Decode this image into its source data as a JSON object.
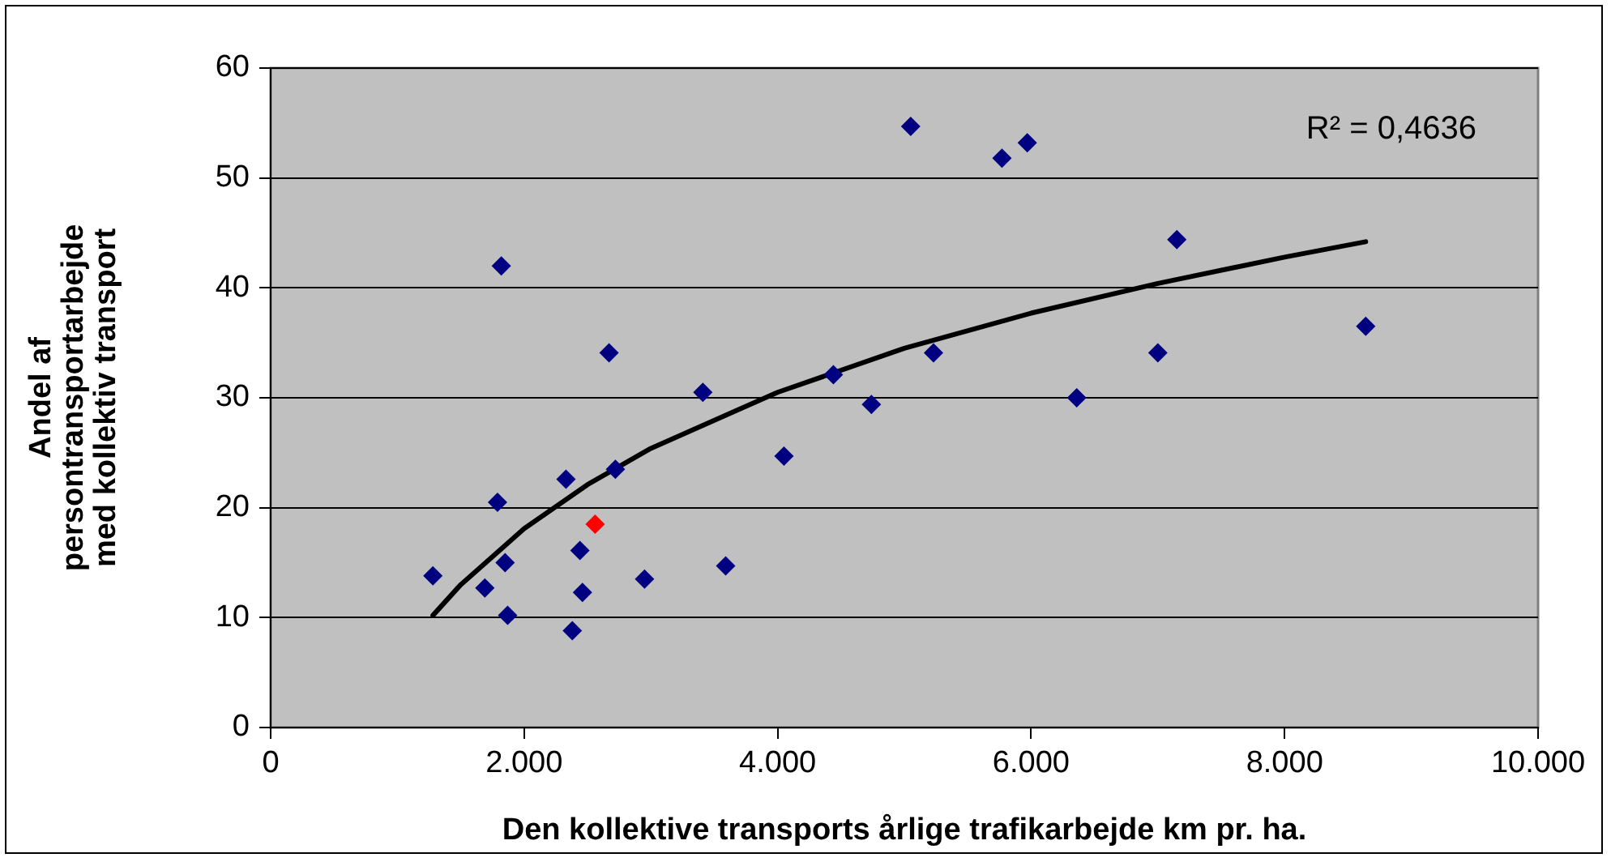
{
  "chart_data": {
    "type": "scatter",
    "xlabel": "Den kollektive transports årlige trafikarbejde km pr. ha.",
    "ylabel": "Andel af\npersontransportarbejde\nmed kollektiv transport",
    "xlim": [
      0,
      10000
    ],
    "xticks": [
      0,
      {
        "value": 2000,
        "label": "2.000"
      },
      {
        "value": 4000,
        "label": "4.000"
      },
      {
        "value": 6000,
        "label": "6.000"
      },
      {
        "value": 8000,
        "label": "8.000"
      },
      {
        "value": 10000,
        "label": "10.000"
      }
    ],
    "ylim": [
      0,
      60
    ],
    "yticks": [
      0,
      10,
      20,
      30,
      40,
      50,
      60
    ],
    "grid": "y",
    "legend": false,
    "marker": "diamond",
    "annotations": [
      "R² = 0,4636"
    ],
    "series": [
      {
        "type": "scatter",
        "x": [
          1280,
          1690,
          1820,
          1790,
          1850,
          1870,
          2330,
          2380,
          2440,
          2460,
          2560,
          2670,
          2720,
          2950,
          3410,
          3590,
          4050,
          4440,
          4740,
          5050,
          5230,
          5770,
          5970,
          6360,
          7000,
          7150,
          8640
        ],
        "values": [
          13.8,
          12.7,
          42.0,
          20.5,
          15.0,
          10.2,
          22.6,
          8.8,
          16.1,
          12.3,
          18.5,
          34.1,
          23.5,
          13.5,
          30.5,
          14.7,
          24.7,
          32.1,
          29.4,
          54.7,
          34.1,
          51.8,
          53.2,
          30.0,
          34.1,
          44.4,
          36.5
        ],
        "colors": [
          "#000080",
          "#000080",
          "#000080",
          "#000080",
          "#000080",
          "#000080",
          "#000080",
          "#000080",
          "#000080",
          "#000080",
          "#ff0000",
          "#000080",
          "#000080",
          "#000080",
          "#000080",
          "#000080",
          "#000080",
          "#000080",
          "#000080",
          "#000080",
          "#000080",
          "#000080",
          "#000080",
          "#000080",
          "#000080",
          "#000080",
          "#000080"
        ]
      },
      {
        "type": "line",
        "x": [
          1280,
          1500,
          2000,
          2500,
          3000,
          4000,
          5000,
          6000,
          7000,
          8000,
          8640
        ],
        "values": [
          10.2,
          13.0,
          18.1,
          22.1,
          25.4,
          30.5,
          34.5,
          37.7,
          40.4,
          42.8,
          44.2
        ],
        "color": "#000000",
        "marker": "none",
        "line_style": "solid"
      }
    ]
  }
}
